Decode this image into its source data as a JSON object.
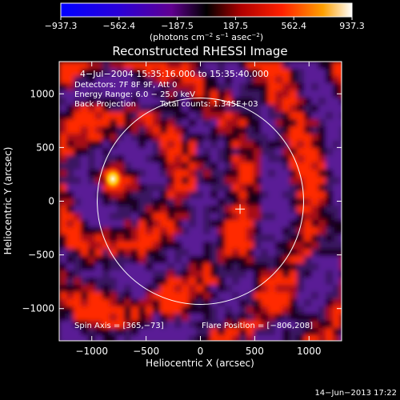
{
  "chart_data": {
    "type": "heatmap",
    "title": "Reconstructed RHESSI Image",
    "xlabel": "Heliocentric X (arcsec)",
    "ylabel": "Heliocentric Y (arcsec)",
    "xlim": [
      -1300,
      1300
    ],
    "ylim": [
      -1300,
      1300
    ],
    "x_ticks": [
      -1000,
      -500,
      0,
      500,
      1000
    ],
    "y_ticks": [
      -1000,
      -500,
      0,
      500,
      1000
    ],
    "x_tick_labels": [
      "−1000",
      "−500",
      "0",
      "500",
      "1000"
    ],
    "y_tick_labels": [
      "−1000",
      "−500",
      "0",
      "500",
      "1000"
    ],
    "colorbar": {
      "min": -937.3,
      "max": 937.3,
      "tick_values": [
        -937.3,
        -562.4,
        -187.5,
        187.5,
        562.4,
        937.3
      ],
      "tick_labels": [
        "−937.3",
        "−562.4",
        "−187.5",
        "187.5",
        "562.4",
        "937.3"
      ],
      "unit_main": "(photons cm",
      "unit_exp1": "−2",
      "unit_mid": " s",
      "unit_exp2": "−1",
      "unit_end": " asec",
      "unit_exp3": "−2",
      "unit_close": ")"
    },
    "annotations": {
      "time_range": "4−Jul−2004 15:35:16.000 to 15:35:40.000",
      "detectors": "Detectors: 7F 8F 9F, Att 0",
      "energy": "Energy Range: 6.0 − 25.0 keV",
      "method": "Back Projection",
      "counts": "Total counts: 1.345E+03",
      "spin_axis": "Spin Axis = [365,−73]",
      "flare_position": "Flare Position = [−806,208]"
    },
    "solar_limb": {
      "center": [
        0,
        0
      ],
      "radius_arcsec": 950
    },
    "spin_axis_marker": [
      365,
      -73
    ],
    "bright_source": {
      "x": -806,
      "y": 208,
      "intensity": 937.3
    },
    "colors": {
      "positive": "#ff2a00",
      "peak": "#fff2b0",
      "negative": "#5a1e96"
    }
  },
  "footer": {
    "timestamp": "14−Jun−2013 17:22"
  }
}
